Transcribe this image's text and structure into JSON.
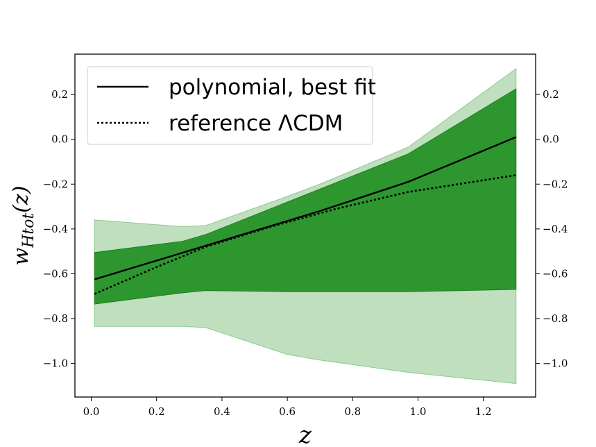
{
  "chart_data": {
    "type": "line",
    "xlabel": "z",
    "ylabel": "w_Htot(z)",
    "xlim": [
      -0.05,
      1.36
    ],
    "ylim": [
      -1.15,
      0.38
    ],
    "xticks": [
      0.0,
      0.2,
      0.4,
      0.6,
      0.8,
      1.0,
      1.2
    ],
    "xtick_labels": [
      "0.0",
      "0.2",
      "0.4",
      "0.6",
      "0.8",
      "1.0",
      "1.2"
    ],
    "yticks": [
      -1.0,
      -0.8,
      -0.6,
      -0.4,
      -0.2,
      0.0,
      0.2
    ],
    "ytick_labels": [
      "−1.0",
      "−0.8",
      "−0.6",
      "−0.4",
      "−0.2",
      "0.0",
      "0.2"
    ],
    "legend_position": "top-left",
    "colors": {
      "band_inner": "#2e962e",
      "band_outer": "#bfdfbf",
      "band_outer_edge": "#8cc98c",
      "band_inner_edge": "#1f7f1f",
      "line": "#000000"
    },
    "series": [
      {
        "name": "polynomial, best fit",
        "style": "solid",
        "x": [
          0.01,
          0.35,
          0.7,
          0.97,
          1.3
        ],
        "y": [
          -0.625,
          -0.475,
          -0.32,
          -0.19,
          0.01
        ]
      },
      {
        "name": "reference ΛCDM",
        "style": "dotted",
        "x": [
          0.01,
          0.2,
          0.35,
          0.55,
          0.75,
          0.97,
          1.3
        ],
        "y": [
          -0.69,
          -0.57,
          -0.48,
          -0.39,
          -0.31,
          -0.235,
          -0.16
        ]
      }
    ],
    "bands": [
      {
        "level": "outer",
        "x": [
          0.01,
          0.28,
          0.35,
          0.6,
          0.7,
          0.97,
          1.3
        ],
        "upper": [
          -0.36,
          -0.39,
          -0.385,
          -0.255,
          -0.2,
          -0.035,
          0.315
        ],
        "lower": [
          -0.835,
          -0.835,
          -0.84,
          -0.96,
          -0.985,
          -1.04,
          -1.09
        ]
      },
      {
        "level": "inner",
        "x": [
          0.01,
          0.28,
          0.35,
          0.6,
          0.97,
          1.3
        ],
        "upper": [
          -0.505,
          -0.455,
          -0.425,
          -0.28,
          -0.065,
          0.225
        ],
        "lower": [
          -0.735,
          -0.685,
          -0.675,
          -0.68,
          -0.68,
          -0.67
        ]
      }
    ]
  }
}
